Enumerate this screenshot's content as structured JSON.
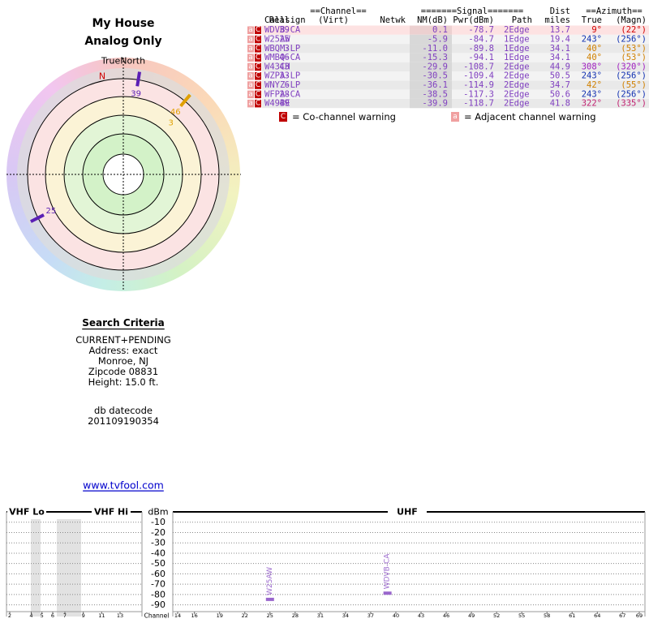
{
  "header": {
    "title": "My House",
    "subtitle": "Analog Only"
  },
  "polar": {
    "north_label": "TrueNorth",
    "north_marker": "N",
    "stations": [
      {
        "label": "39",
        "azimuth": 9,
        "color": "#5b1fb5"
      },
      {
        "label": "25",
        "azimuth": 243,
        "color": "#5b1fb5"
      },
      {
        "label": "46",
        "azimuth": 40,
        "color": "#e0a000"
      },
      {
        "label": "3",
        "azimuth": 40,
        "color": "#e0a000"
      }
    ]
  },
  "table": {
    "group_headers": [
      "==Channel==",
      "=======Signal=======",
      "Dist",
      "==Azimuth=="
    ],
    "headers": [
      "Callsign",
      "Real",
      "(Virt)",
      "Netwk",
      "NM(dB)",
      "Pwr(dBm)",
      "Path",
      "miles",
      "True",
      "(Magn)"
    ],
    "rows": [
      {
        "flags": [
          "a",
          "C"
        ],
        "az_color": "#d00000",
        "cells": [
          "WDVB-CA",
          "39",
          "0.1",
          "-78.7",
          "2Edge",
          "13.7",
          "9°",
          "(22°)"
        ]
      },
      {
        "flags": [
          "a",
          "C"
        ],
        "az_color": "#1030b0",
        "cells": [
          "W25AW",
          "25",
          "-5.9",
          "-84.7",
          "1Edge",
          "19.4",
          "243°",
          "(256°)"
        ]
      },
      {
        "flags": [
          "a",
          "C"
        ],
        "az_color": "#d08000",
        "cells": [
          "WBQM-LP",
          "3",
          "-11.0",
          "-89.8",
          "1Edge",
          "34.1",
          "40°",
          "(53°)"
        ]
      },
      {
        "flags": [
          "a",
          "C"
        ],
        "az_color": "#d08000",
        "cells": [
          "WMBQ-CA",
          "46",
          "-15.3",
          "-94.1",
          "1Edge",
          "34.1",
          "40°",
          "(53°)"
        ]
      },
      {
        "flags": [
          "a",
          "C"
        ],
        "az_color": "#a020c0",
        "cells": [
          "W43CH",
          "43",
          "-29.9",
          "-108.7",
          "2Edge",
          "44.9",
          "308°",
          "(320°)"
        ]
      },
      {
        "flags": [
          "a",
          "C"
        ],
        "az_color": "#1030b0",
        "cells": [
          "WZPA-LP",
          "33",
          "-30.5",
          "-109.4",
          "2Edge",
          "50.5",
          "243°",
          "(256°)"
        ]
      },
      {
        "flags": [
          "a",
          "C"
        ],
        "az_color": "#d08000",
        "cells": [
          "WNYZ-LP",
          "6",
          "-36.1",
          "-114.9",
          "2Edge",
          "34.7",
          "42°",
          "(55°)"
        ]
      },
      {
        "flags": [
          "a",
          "C"
        ],
        "az_color": "#1030b0",
        "cells": [
          "WFPA-CA",
          "28",
          "-38.5",
          "-117.3",
          "2Edge",
          "50.6",
          "243°",
          "(256°)"
        ]
      },
      {
        "flags": [
          "a",
          "C"
        ],
        "az_color": "#c02070",
        "cells": [
          "W49BE",
          "49",
          "-39.9",
          "-118.7",
          "2Edge",
          "41.8",
          "322°",
          "(335°)"
        ]
      }
    ]
  },
  "legend": [
    {
      "symbol": "C",
      "text": "= Co-channel warning"
    },
    {
      "symbol": "a",
      "text": "= Adjacent channel warning"
    }
  ],
  "criteria": {
    "title": "Search Criteria",
    "lines": [
      "CURRENT+PENDING",
      "Address: exact",
      "Monroe, NJ",
      "Zipcode 08831",
      "Height: 15.0 ft."
    ],
    "datecode_label": "db datecode",
    "datecode": "201109190354"
  },
  "link": "www.tvfool.com",
  "chart_data": {
    "type": "bar",
    "y_label": "dBm",
    "x_label": "Channel",
    "ylim": [
      -95,
      0
    ],
    "yticks": [
      -10,
      -20,
      -30,
      -40,
      -50,
      -60,
      -70,
      -80,
      -90
    ],
    "bands": [
      {
        "name": "VHF Lo",
        "xlim": [
          2,
          6
        ],
        "xticks": [
          2,
          4,
          5,
          6
        ]
      },
      {
        "name": "VHF Hi",
        "xlim": [
          7,
          13
        ],
        "xticks": [
          7,
          9,
          11,
          13
        ]
      },
      {
        "name": "UHF",
        "xlim": [
          14,
          69
        ],
        "xticks": [
          14,
          16,
          19,
          22,
          25,
          28,
          31,
          34,
          37,
          40,
          43,
          46,
          49,
          52,
          55,
          58,
          61,
          64,
          67,
          69
        ]
      }
    ],
    "categories": [
      "W25AW",
      "WDVB-CA"
    ],
    "x": [
      25,
      39
    ],
    "values": [
      -84.7,
      -78.7
    ],
    "color": "#9966cc"
  }
}
